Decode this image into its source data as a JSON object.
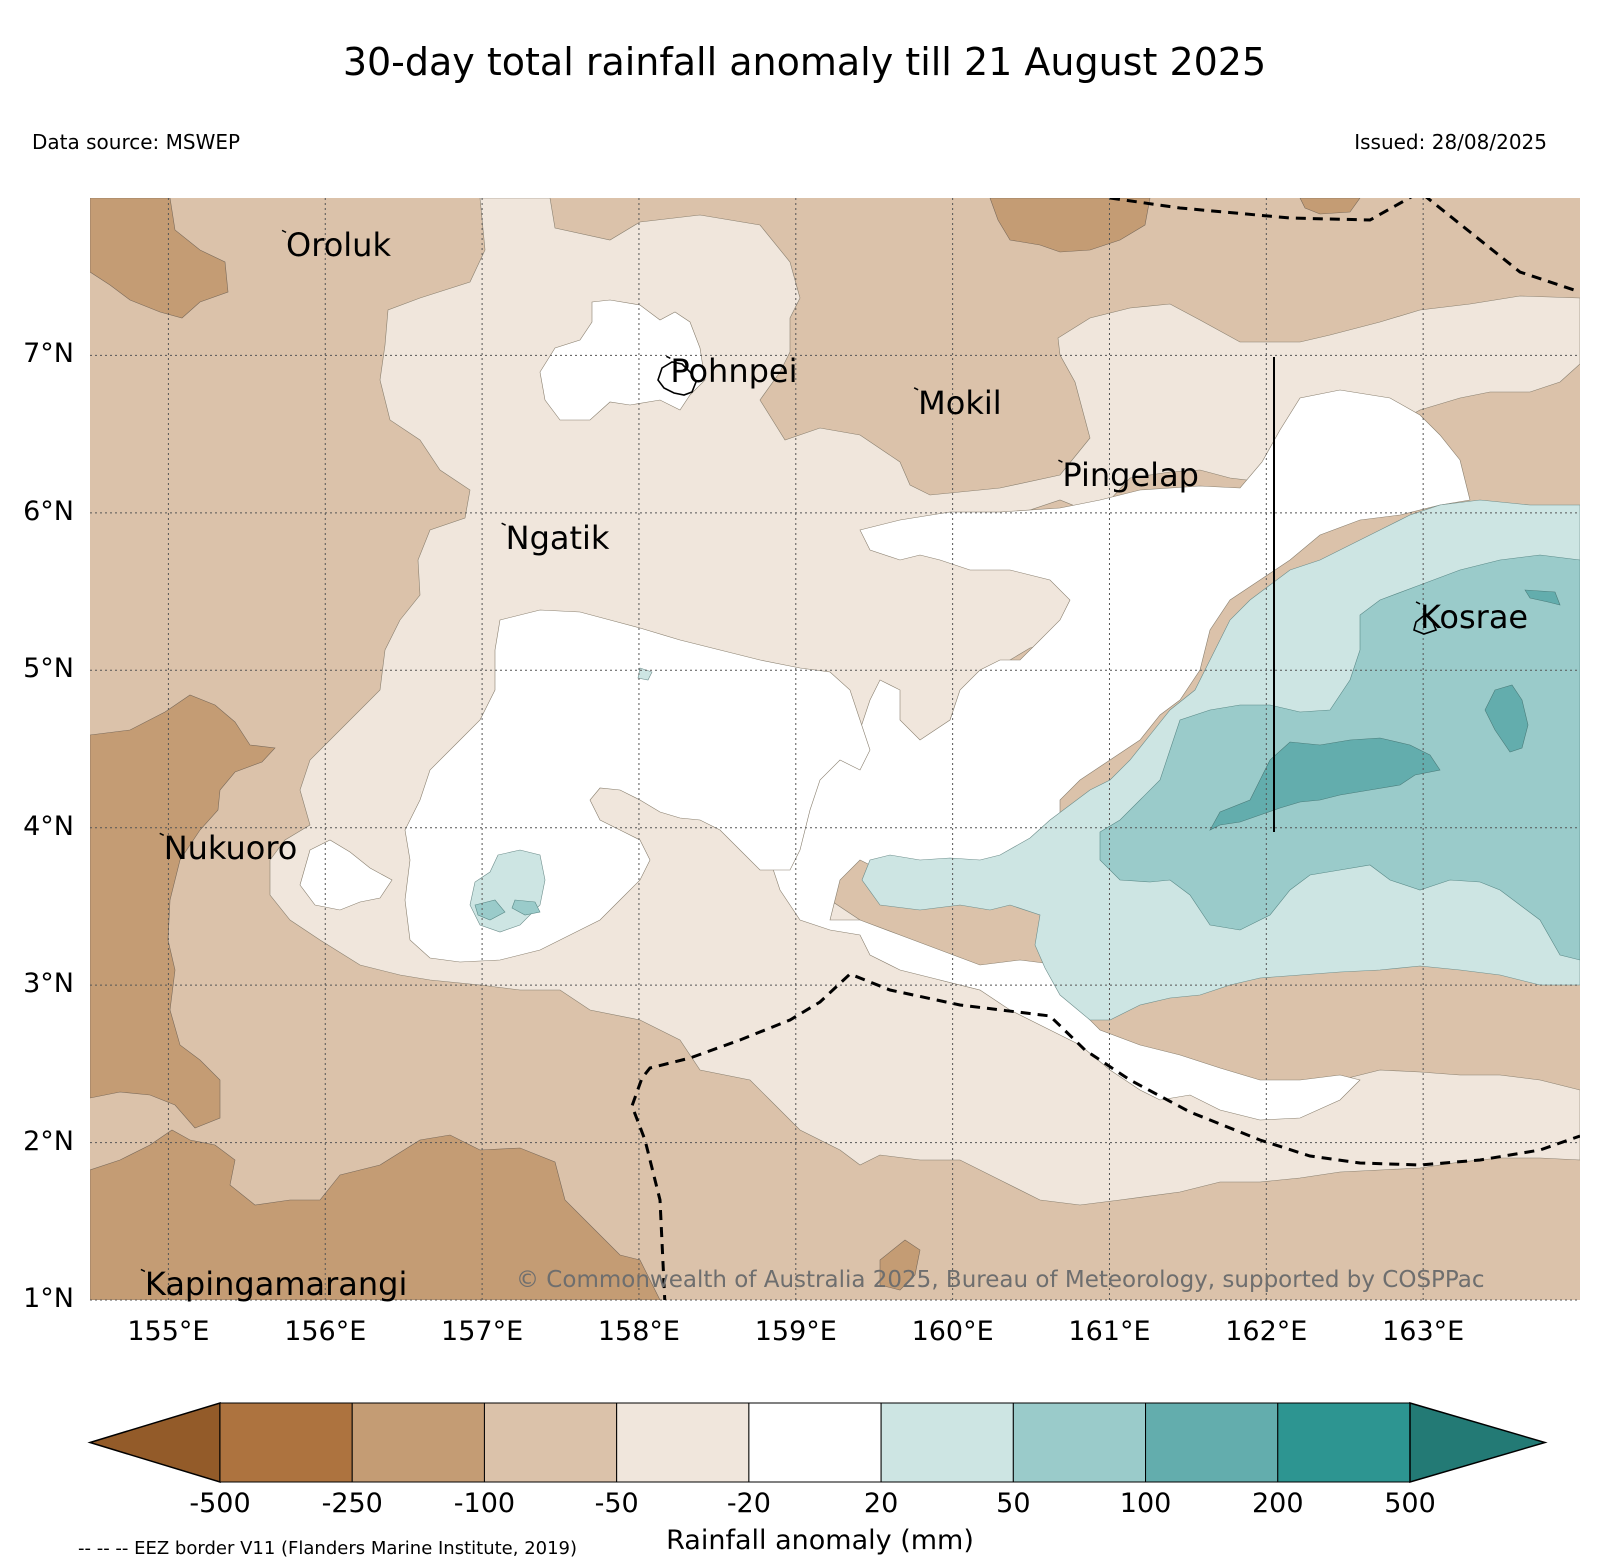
{
  "title": "30-day total rainfall anomaly till 21 August 2025",
  "data_source": "Data source: MSWEP",
  "issued": "Issued: 28/08/2025",
  "copyright": "© Commonwealth of Australia 2025, Bureau of Meteorology, supported by COSPPac",
  "eez_note": "-- -- -- EEZ border V11 (Flanders Marine Institute, 2019)",
  "map": {
    "lon_range": [
      154.5,
      164.0
    ],
    "lat_range": [
      1.0,
      8.0
    ],
    "x_ticks": [
      {
        "lon": 155,
        "label": "155°E"
      },
      {
        "lon": 156,
        "label": "156°E"
      },
      {
        "lon": 157,
        "label": "157°E"
      },
      {
        "lon": 158,
        "label": "158°E"
      },
      {
        "lon": 159,
        "label": "159°E"
      },
      {
        "lon": 160,
        "label": "160°E"
      },
      {
        "lon": 161,
        "label": "161°E"
      },
      {
        "lon": 162,
        "label": "162°E"
      },
      {
        "lon": 163,
        "label": "163°E"
      }
    ],
    "y_ticks": [
      {
        "lat": 7,
        "label": "7°N"
      },
      {
        "lat": 6,
        "label": "6°N"
      },
      {
        "lat": 5,
        "label": "5°N"
      },
      {
        "lat": 4,
        "label": "4°N"
      },
      {
        "lat": 3,
        "label": "3°N"
      },
      {
        "lat": 2,
        "label": "2°N"
      },
      {
        "lat": 1,
        "label": "1°N"
      }
    ],
    "places": [
      {
        "name": "Oroluk",
        "lon": 155.75,
        "lat": 7.68
      },
      {
        "name": "Pohnpei",
        "lon": 158.2,
        "lat": 6.88
      },
      {
        "name": "Mokil",
        "lon": 159.78,
        "lat": 6.68
      },
      {
        "name": "Pingelap",
        "lon": 160.7,
        "lat": 6.22
      },
      {
        "name": "Ngatik",
        "lon": 157.15,
        "lat": 5.82
      },
      {
        "name": "Kosrae",
        "lon": 162.98,
        "lat": 5.32
      },
      {
        "name": "Nukuoro",
        "lon": 154.97,
        "lat": 3.85
      },
      {
        "name": "Kapingamarangi",
        "lon": 154.85,
        "lat": 1.08
      }
    ]
  },
  "legend": {
    "title": "Rainfall anomaly (mm)",
    "boundaries": [
      "-500",
      "-250",
      "-100",
      "-50",
      "-20",
      "20",
      "50",
      "100",
      "200",
      "500"
    ],
    "colors": {
      "under": "#935b29",
      "bins": [
        "#ad733f",
        "#c49c74",
        "#dbc2aa",
        "#f0e6dc",
        "#ffffff",
        "#cde5e3",
        "#9acbca",
        "#63adad",
        "#2d9591"
      ],
      "over": "#237a75"
    }
  }
}
